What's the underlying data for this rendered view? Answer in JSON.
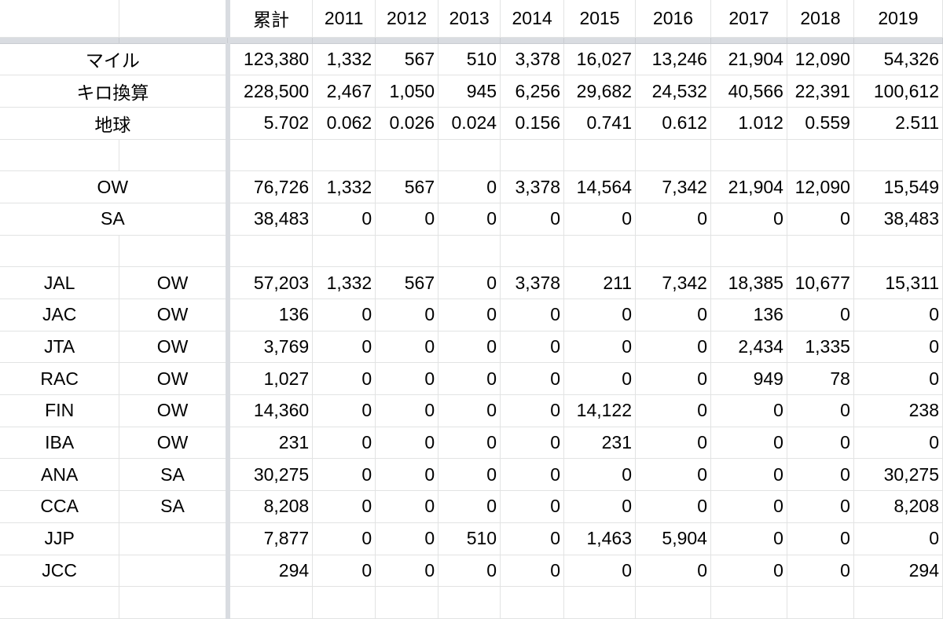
{
  "header": {
    "cumulative": "累計",
    "years": [
      "2011",
      "2012",
      "2013",
      "2014",
      "2015",
      "2016",
      "2017",
      "2018",
      "2019"
    ]
  },
  "summary": [
    {
      "label": "マイル",
      "cum": "123,380",
      "vals": [
        "1,332",
        "567",
        "510",
        "3,378",
        "16,027",
        "13,246",
        "21,904",
        "12,090",
        "54,326"
      ]
    },
    {
      "label": "キロ換算",
      "cum": "228,500",
      "vals": [
        "2,467",
        "1,050",
        "945",
        "6,256",
        "29,682",
        "24,532",
        "40,566",
        "22,391",
        "100,612"
      ]
    },
    {
      "label": "地球",
      "cum": "5.702",
      "vals": [
        "0.062",
        "0.026",
        "0.024",
        "0.156",
        "0.741",
        "0.612",
        "1.012",
        "0.559",
        "2.511"
      ]
    }
  ],
  "alliances": [
    {
      "label": "OW",
      "cum": "76,726",
      "vals": [
        "1,332",
        "567",
        "0",
        "3,378",
        "14,564",
        "7,342",
        "21,904",
        "12,090",
        "15,549"
      ]
    },
    {
      "label": "SA",
      "cum": "38,483",
      "vals": [
        "0",
        "0",
        "0",
        "0",
        "0",
        "0",
        "0",
        "0",
        "38,483"
      ]
    }
  ],
  "airlines": [
    {
      "code": "JAL",
      "alliance": "OW",
      "cum": "57,203",
      "vals": [
        "1,332",
        "567",
        "0",
        "3,378",
        "211",
        "7,342",
        "18,385",
        "10,677",
        "15,311"
      ]
    },
    {
      "code": "JAC",
      "alliance": "OW",
      "cum": "136",
      "vals": [
        "0",
        "0",
        "0",
        "0",
        "0",
        "0",
        "136",
        "0",
        "0"
      ]
    },
    {
      "code": "JTA",
      "alliance": "OW",
      "cum": "3,769",
      "vals": [
        "0",
        "0",
        "0",
        "0",
        "0",
        "0",
        "2,434",
        "1,335",
        "0"
      ]
    },
    {
      "code": "RAC",
      "alliance": "OW",
      "cum": "1,027",
      "vals": [
        "0",
        "0",
        "0",
        "0",
        "0",
        "0",
        "949",
        "78",
        "0"
      ]
    },
    {
      "code": "FIN",
      "alliance": "OW",
      "cum": "14,360",
      "vals": [
        "0",
        "0",
        "0",
        "0",
        "14,122",
        "0",
        "0",
        "0",
        "238"
      ]
    },
    {
      "code": "IBA",
      "alliance": "OW",
      "cum": "231",
      "vals": [
        "0",
        "0",
        "0",
        "0",
        "231",
        "0",
        "0",
        "0",
        "0"
      ]
    },
    {
      "code": "ANA",
      "alliance": "SA",
      "cum": "30,275",
      "vals": [
        "0",
        "0",
        "0",
        "0",
        "0",
        "0",
        "0",
        "0",
        "30,275"
      ]
    },
    {
      "code": "CCA",
      "alliance": "SA",
      "cum": "8,208",
      "vals": [
        "0",
        "0",
        "0",
        "0",
        "0",
        "0",
        "0",
        "0",
        "8,208"
      ]
    },
    {
      "code": "JJP",
      "alliance": "",
      "cum": "7,877",
      "vals": [
        "0",
        "0",
        "510",
        "0",
        "1,463",
        "5,904",
        "0",
        "0",
        "0"
      ]
    },
    {
      "code": "JCC",
      "alliance": "",
      "cum": "294",
      "vals": [
        "0",
        "0",
        "0",
        "0",
        "0",
        "0",
        "0",
        "0",
        "294"
      ]
    }
  ]
}
